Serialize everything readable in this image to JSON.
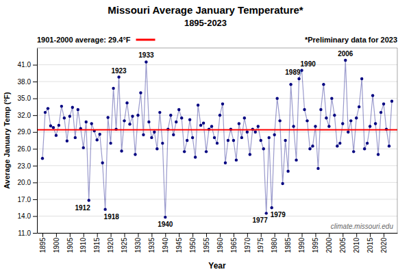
{
  "chart_data": {
    "type": "line",
    "title": "Missouri Average January Temperature*",
    "subtitle": "1895-2023",
    "xlabel": "Year",
    "ylabel": "Average January Temp (°F)",
    "footnote": "*Preliminary data for 2023",
    "source": "climate.missouri.edu",
    "grid": true,
    "marker": "circle",
    "xlim": [
      1893,
      2025
    ],
    "xticks": [
      1895,
      1900,
      1905,
      1910,
      1915,
      1920,
      1925,
      1930,
      1935,
      1940,
      1945,
      1950,
      1955,
      1960,
      1965,
      1970,
      1975,
      1980,
      1985,
      1990,
      1995,
      2000,
      2005,
      2010,
      2015,
      2020
    ],
    "ylim": [
      11.0,
      44.0
    ],
    "yticks": [
      {
        "value": 11.0,
        "label": "11.0"
      },
      {
        "value": 14.0,
        "label": "14.0"
      },
      {
        "value": 17.0,
        "label": "17.0"
      },
      {
        "value": 20.0,
        "label": "20.0"
      },
      {
        "value": 23.0,
        "label": "23.0"
      },
      {
        "value": 26.0,
        "label": "26.0"
      },
      {
        "value": 29.0,
        "label": "29.0"
      },
      {
        "value": 32.0,
        "label": "32.0"
      },
      {
        "value": 35.0,
        "label": "35.0"
      },
      {
        "value": 38.0,
        "label": "38.0"
      },
      {
        "value": 41.0,
        "label": "41.0"
      }
    ],
    "average": {
      "value": 29.4,
      "label": "1901-2000 average: 29.4°F",
      "color": "#FF0000"
    },
    "x": [
      1895,
      1896,
      1897,
      1898,
      1899,
      1900,
      1901,
      1902,
      1903,
      1904,
      1905,
      1906,
      1907,
      1908,
      1909,
      1910,
      1911,
      1912,
      1913,
      1914,
      1915,
      1916,
      1917,
      1918,
      1919,
      1920,
      1921,
      1922,
      1923,
      1924,
      1925,
      1926,
      1927,
      1928,
      1929,
      1930,
      1931,
      1932,
      1933,
      1934,
      1935,
      1936,
      1937,
      1938,
      1939,
      1940,
      1941,
      1942,
      1943,
      1944,
      1945,
      1946,
      1947,
      1948,
      1949,
      1950,
      1951,
      1952,
      1953,
      1954,
      1955,
      1956,
      1957,
      1958,
      1959,
      1960,
      1961,
      1962,
      1963,
      1964,
      1965,
      1966,
      1967,
      1968,
      1969,
      1970,
      1971,
      1972,
      1973,
      1974,
      1975,
      1976,
      1977,
      1978,
      1979,
      1980,
      1981,
      1982,
      1983,
      1984,
      1985,
      1986,
      1987,
      1988,
      1989,
      1990,
      1991,
      1992,
      1993,
      1994,
      1995,
      1996,
      1997,
      1998,
      1999,
      2000,
      2001,
      2002,
      2003,
      2004,
      2005,
      2006,
      2007,
      2008,
      2009,
      2010,
      2011,
      2012,
      2013,
      2014,
      2015,
      2016,
      2017,
      2018,
      2019,
      2020,
      2021,
      2022,
      2023
    ],
    "series": [
      {
        "color": "#000080",
        "values": [
          24.3,
          32.5,
          33.2,
          30.1,
          29.8,
          28.4,
          30.2,
          33.6,
          31.5,
          27.4,
          31.8,
          33.4,
          28.0,
          33.0,
          29.6,
          26.2,
          30.8,
          16.8,
          30.5,
          29.2,
          27.6,
          28.6,
          23.5,
          15.2,
          31.6,
          27.0,
          36.8,
          29.5,
          38.8,
          25.6,
          31.0,
          34.2,
          30.4,
          31.8,
          25.0,
          32.0,
          36.0,
          28.5,
          41.5,
          30.8,
          28.0,
          29.0,
          26.0,
          32.5,
          27.0,
          13.8,
          29.5,
          32.0,
          28.5,
          30.8,
          33.0,
          31.5,
          25.5,
          27.5,
          31.2,
          28.0,
          24.5,
          33.8,
          30.2,
          30.6,
          25.5,
          29.5,
          30.0,
          28.0,
          27.0,
          32.0,
          34.0,
          23.5,
          27.5,
          29.5,
          27.5,
          24.0,
          30.5,
          28.0,
          31.5,
          29.0,
          25.0,
          29.5,
          29.0,
          30.0,
          27.5,
          26.0,
          14.5,
          28.0,
          15.5,
          28.5,
          35.0,
          31.0,
          19.8,
          27.5,
          22.0,
          37.5,
          30.0,
          24.0,
          38.5,
          40.0,
          33.0,
          31.0,
          26.0,
          26.5,
          30.0,
          22.5,
          33.0,
          37.5,
          31.5,
          30.0,
          35.0,
          32.0,
          26.5,
          27.0,
          30.5,
          41.8,
          29.0,
          31.0,
          25.5,
          31.5,
          33.5,
          38.5,
          26.0,
          27.0,
          30.0,
          35.5,
          30.5,
          25.0,
          32.5,
          34.0,
          29.5,
          26.5,
          34.5
        ]
      }
    ],
    "annotations": [
      {
        "text": "1912",
        "x": 1912
      },
      {
        "text": "1918",
        "x": 1918
      },
      {
        "text": "1923",
        "x": 1923
      },
      {
        "text": "1933",
        "x": 1933
      },
      {
        "text": "1940",
        "x": 1940
      },
      {
        "text": "1977",
        "x": 1977
      },
      {
        "text": "1979",
        "x": 1979
      },
      {
        "text": "1989",
        "x": 1989
      },
      {
        "text": "1990",
        "x": 1990
      },
      {
        "text": "2006",
        "x": 2006
      }
    ]
  }
}
